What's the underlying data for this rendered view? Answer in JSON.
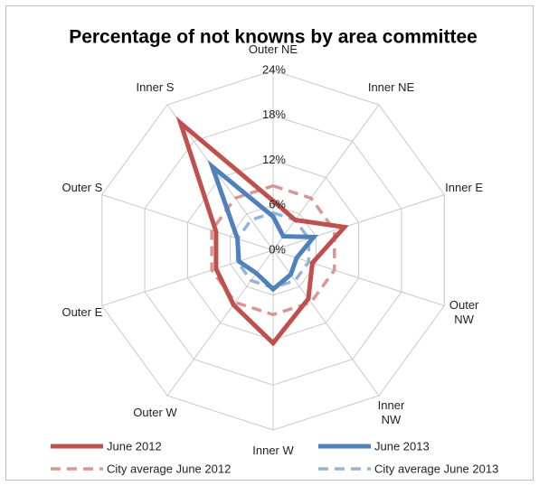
{
  "chart_data": {
    "type": "radar",
    "title": "Percentage of not knowns by area committee",
    "categories": [
      "Outer NE",
      "Inner NE",
      "Inner E",
      "Outer NW",
      "Inner NW",
      "Inner W",
      "Outer W",
      "Outer E",
      "Outer S",
      "Inner S"
    ],
    "series": [
      {
        "name": "June 2012",
        "color": "#c0504d",
        "dashed": false,
        "values": [
          6.6,
          5,
          10,
          5.5,
          8,
          12.4,
          9,
          8,
          8,
          21
        ]
      },
      {
        "name": "June 2013",
        "color": "#4f81bd",
        "dashed": false,
        "values": [
          4.5,
          2.3,
          5.7,
          3.3,
          4,
          5.2,
          3.8,
          4.8,
          5,
          13.8
        ]
      },
      {
        "name": "City average June 2012",
        "color": "#d99694",
        "dashed": true,
        "values": [
          8.6,
          8.6,
          8.6,
          8.6,
          8.6,
          8.6,
          8.6,
          8.6,
          8.6,
          8.6
        ]
      },
      {
        "name": "City average June 2013",
        "color": "#95b3d7",
        "dashed": true,
        "values": [
          5,
          5,
          5,
          5,
          5,
          5,
          5,
          5,
          5,
          5
        ]
      }
    ],
    "ylim": [
      0,
      24
    ],
    "yticks": [
      {
        "value": 0,
        "label": "0%"
      },
      {
        "value": 6,
        "label": "6%"
      },
      {
        "value": 12,
        "label": "12%"
      },
      {
        "value": 18,
        "label": "18%"
      },
      {
        "value": 24,
        "label": "24%"
      }
    ],
    "grid": true,
    "legend": "bottom"
  }
}
